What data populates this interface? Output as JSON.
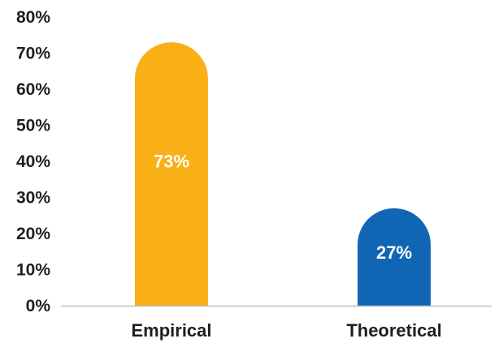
{
  "chart_data": {
    "type": "bar",
    "title": "",
    "xlabel": "",
    "ylabel": "",
    "categories": [
      "Empirical",
      "Theoretical"
    ],
    "values": [
      73,
      27
    ],
    "data_labels": [
      "73%",
      "27%"
    ],
    "y_ticks": [
      "0%",
      "10%",
      "20%",
      "30%",
      "40%",
      "50%",
      "60%",
      "70%",
      "80%"
    ],
    "ylim": [
      0,
      80
    ],
    "grid": false,
    "legend": "none",
    "bar_colors": [
      "#F9B017",
      "#1066B4"
    ],
    "axis_color": "#bfbfbf"
  }
}
